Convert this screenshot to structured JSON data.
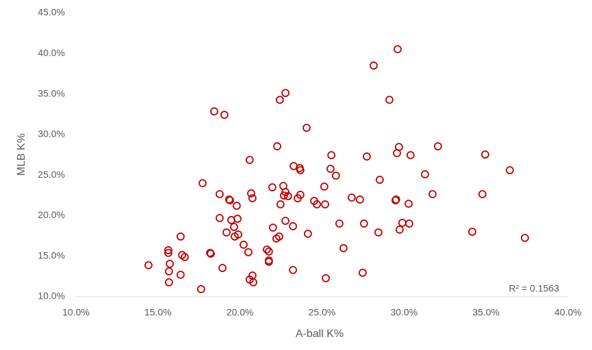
{
  "chart_data": {
    "type": "scatter",
    "x_label": "A-ball K%",
    "y_label": "MLB K%",
    "annotation": "R² = 0.1563",
    "color": "#c00000",
    "xlim": [
      10,
      40
    ],
    "xticks": [
      {
        "value": 10,
        "label": "10.0%"
      },
      {
        "value": 15,
        "label": "15.0%"
      },
      {
        "value": 20,
        "label": "20.0%"
      },
      {
        "value": 25,
        "label": "25.0%"
      },
      {
        "value": 30,
        "label": "30.0%"
      },
      {
        "value": 35,
        "label": "35.0%"
      },
      {
        "value": 40,
        "label": "40.0%"
      }
    ],
    "ylim": [
      10,
      45
    ],
    "yticks": [
      {
        "value": 10,
        "label": "10.0%"
      },
      {
        "value": 15,
        "label": "15.0%"
      },
      {
        "value": 20,
        "label": "20.0%"
      },
      {
        "value": 25,
        "label": "25.0%"
      },
      {
        "value": 30,
        "label": "30.0%"
      },
      {
        "value": 35,
        "label": "35.0%"
      },
      {
        "value": 40,
        "label": "40.0%"
      },
      {
        "value": 45,
        "label": "45.0%"
      }
    ],
    "x": [
      14.42,
      15.63,
      15.63,
      15.72,
      15.67,
      15.67,
      16.38,
      16.38,
      16.47,
      16.63,
      17.63,
      18.18,
      18.22,
      17.72,
      18.43,
      19.05,
      18.76,
      18.76,
      18.93,
      19.18,
      19.34,
      19.39,
      19.47,
      19.64,
      19.68,
      19.8,
      19.85,
      19.89,
      20.22,
      20.51,
      20.59,
      20.59,
      20.68,
      20.76,
      20.76,
      20.81,
      21.64,
      21.76,
      21.76,
      21.76,
      21.97,
      22.01,
      22.22,
      22.39,
      22.27,
      22.43,
      22.47,
      22.64,
      22.68,
      22.77,
      22.77,
      22.77,
      22.93,
      23.23,
      23.27,
      23.23,
      23.52,
      23.64,
      23.68,
      23.68,
      24.06,
      24.14,
      24.52,
      24.69,
      25.14,
      25.19,
      25.23,
      25.52,
      25.57,
      25.85,
      26.06,
      26.31,
      26.81,
      27.31,
      27.48,
      27.56,
      27.73,
      28.15,
      28.44,
      28.52,
      29.11,
      29.52,
      29.48,
      29.57,
      29.61,
      29.69,
      29.73,
      29.9,
      30.28,
      30.32,
      30.4,
      31.28,
      31.74,
      32.07,
      34.16,
      34.78,
      34.95,
      36.45,
      37.37
    ],
    "values": [
      13.88,
      15.73,
      15.4,
      14.05,
      13.12,
      11.77,
      17.42,
      12.7,
      15.14,
      14.89,
      10.93,
      15.4,
      15.31,
      24.0,
      32.86,
      32.43,
      22.65,
      19.7,
      13.54,
      17.93,
      21.98,
      21.89,
      19.45,
      18.6,
      17.42,
      21.22,
      19.61,
      17.67,
      16.41,
      15.48,
      26.87,
      12.11,
      22.74,
      12.61,
      22.14,
      11.77,
      15.82,
      15.57,
      14.47,
      14.3,
      23.49,
      18.52,
      17.17,
      17.42,
      28.55,
      34.29,
      21.39,
      23.66,
      22.48,
      22.9,
      35.13,
      19.36,
      22.4,
      18.69,
      26.11,
      13.29,
      22.14,
      25.86,
      25.6,
      22.57,
      30.83,
      17.76,
      21.81,
      21.39,
      23.58,
      21.39,
      12.28,
      25.77,
      27.46,
      24.93,
      19.02,
      15.99,
      22.23,
      21.98,
      12.95,
      19.02,
      27.29,
      38.51,
      17.93,
      24.42,
      34.29,
      21.98,
      21.89,
      27.71,
      40.53,
      28.47,
      18.27,
      19.11,
      21.47,
      19.02,
      27.46,
      25.1,
      22.65,
      28.55,
      18.01,
      22.65,
      27.54,
      25.6,
      17.25
    ]
  }
}
